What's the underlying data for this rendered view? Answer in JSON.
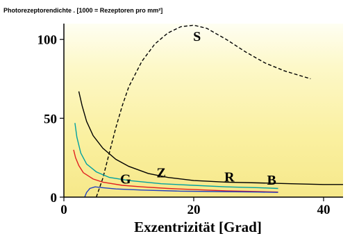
{
  "chart_data": {
    "type": "line",
    "title": "Photorezeptorendichte   . [1000 = Rezeptoren pro mm²]",
    "xlabel": "Exzentrizität [Grad]",
    "ylabel": "",
    "xlim": [
      0,
      43
    ],
    "ylim": [
      0,
      110
    ],
    "x_ticks": [
      0,
      20,
      40
    ],
    "y_ticks": [
      0,
      50,
      100
    ],
    "x_tick_labels": [
      "0",
      "20",
      "40"
    ],
    "y_tick_labels": [
      "0",
      "50",
      "100"
    ],
    "background": "yellow-gradient",
    "series": [
      {
        "name": "S",
        "color": "#000000",
        "dash": true,
        "label_at": [
          20.5,
          99
        ],
        "points": [
          [
            5,
            0
          ],
          [
            6,
            12
          ],
          [
            7,
            28
          ],
          [
            8,
            44
          ],
          [
            9,
            58
          ],
          [
            10,
            70
          ],
          [
            12,
            86
          ],
          [
            14,
            97
          ],
          [
            16,
            104
          ],
          [
            18,
            108
          ],
          [
            20,
            109
          ],
          [
            22,
            107
          ],
          [
            25,
            100
          ],
          [
            28,
            92
          ],
          [
            31,
            85
          ],
          [
            34,
            80
          ],
          [
            36,
            77.5
          ],
          [
            38,
            75
          ]
        ]
      },
      {
        "name": "Z",
        "color": "#000000",
        "dash": false,
        "label_at": [
          15,
          12.5
        ],
        "points": [
          [
            2.3,
            67
          ],
          [
            2.8,
            58
          ],
          [
            3.5,
            48
          ],
          [
            4.5,
            39
          ],
          [
            6,
            31
          ],
          [
            8,
            24
          ],
          [
            10,
            19.5
          ],
          [
            13,
            15
          ],
          [
            16,
            12.5
          ],
          [
            20,
            10.5
          ],
          [
            25,
            9.5
          ],
          [
            30,
            9
          ],
          [
            35,
            8.5
          ],
          [
            40,
            8
          ],
          [
            43,
            8
          ]
        ]
      },
      {
        "name": "G",
        "color": "#00a0a0",
        "dash": false,
        "label_at": [
          9.5,
          8.5
        ],
        "points": [
          [
            1.7,
            47
          ],
          [
            2,
            38
          ],
          [
            2.6,
            28
          ],
          [
            3.5,
            21
          ],
          [
            5,
            16
          ],
          [
            7,
            12.5
          ],
          [
            10,
            10.5
          ],
          [
            15,
            8.5
          ],
          [
            20,
            7.5
          ],
          [
            25,
            6.5
          ],
          [
            30,
            6
          ],
          [
            33,
            5.5
          ]
        ]
      },
      {
        "name": "R",
        "color": "#e02020",
        "dash": false,
        "label_at": [
          25.5,
          10
        ],
        "points": [
          [
            1.5,
            30
          ],
          [
            1.8,
            25
          ],
          [
            2.3,
            20
          ],
          [
            3,
            15.5
          ],
          [
            4.5,
            11.5
          ],
          [
            6,
            9.5
          ],
          [
            9,
            7.5
          ],
          [
            12,
            6.5
          ],
          [
            16,
            5.5
          ],
          [
            20,
            4.8
          ],
          [
            25,
            4
          ],
          [
            30,
            3.5
          ],
          [
            33,
            3.2
          ]
        ]
      },
      {
        "name": "B",
        "color": "#2040c0",
        "dash": false,
        "label_at": [
          32,
          8
        ],
        "points": [
          [
            3.2,
            0
          ],
          [
            3.5,
            3
          ],
          [
            4,
            5.5
          ],
          [
            4.8,
            6.5
          ],
          [
            6,
            6
          ],
          [
            8,
            5.2
          ],
          [
            12,
            4.5
          ],
          [
            18,
            3.8
          ],
          [
            24,
            3.5
          ],
          [
            30,
            3.2
          ],
          [
            33,
            3
          ]
        ]
      }
    ]
  }
}
